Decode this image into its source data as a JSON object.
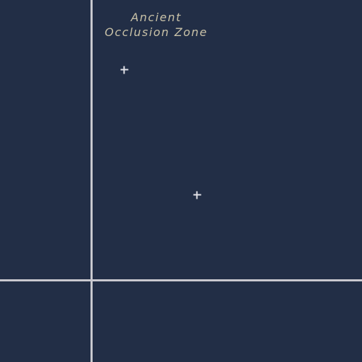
{
  "map": {
    "background_color": "#222e46",
    "road_color": "#c9c9cf",
    "marker_color": "#e2e2e8",
    "label_color": "#c9c2a8"
  },
  "zone_label": {
    "line1": "Ancient",
    "line2": "Occlusion Zone"
  },
  "markers": [
    {
      "icon": "plus-marker-icon"
    },
    {
      "icon": "plus-marker-icon"
    }
  ]
}
